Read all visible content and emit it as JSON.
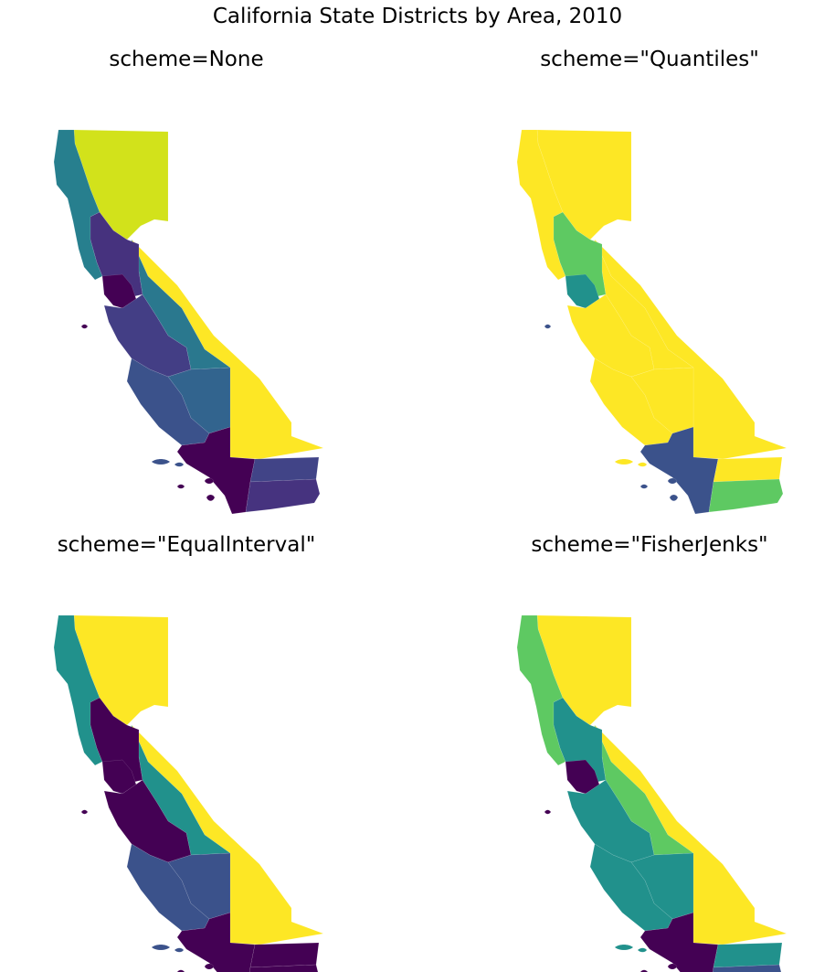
{
  "figure": {
    "title": "California State Districts by Area, 2010"
  },
  "panels": [
    {
      "title": "scheme=None",
      "colors": {
        "north": "#d2e21b",
        "coast": "#277f8e",
        "sierra": "#2a788e",
        "east": "#fde725",
        "bay": "#46327e",
        "bay_dark": "#440154",
        "central": "#433e85",
        "valley": "#32648e",
        "south_central": "#3b528b",
        "la": "#440154",
        "se": "#414487",
        "se2": "#46337f",
        "islands": "#3b528b"
      }
    },
    {
      "title": "scheme=\"Quantiles\"",
      "colors": {
        "north": "#fde725",
        "coast": "#fde725",
        "sierra": "#fde725",
        "east": "#fde725",
        "bay": "#5ec962",
        "bay_dark": "#21918c",
        "central": "#fde725",
        "valley": "#fde725",
        "south_central": "#fde725",
        "la": "#3b528b",
        "se": "#fde725",
        "se2": "#5ec962",
        "islands": "#fde725"
      }
    },
    {
      "title": "scheme=\"EqualInterval\"",
      "colors": {
        "north": "#fde725",
        "coast": "#21918c",
        "sierra": "#21918c",
        "east": "#fde725",
        "bay": "#440154",
        "bay_dark": "#440154",
        "central": "#440154",
        "valley": "#3b528b",
        "south_central": "#3b528b",
        "la": "#440154",
        "se": "#440154",
        "se2": "#440154",
        "islands": "#3b528b"
      }
    },
    {
      "title": "scheme=\"FisherJenks\"",
      "colors": {
        "north": "#fde725",
        "coast": "#5ec962",
        "sierra": "#5ec962",
        "east": "#fde725",
        "bay": "#21918c",
        "bay_dark": "#440154",
        "central": "#21918c",
        "valley": "#21918c",
        "south_central": "#21918c",
        "la": "#440154",
        "se": "#21918c",
        "se2": "#3b528b",
        "islands": "#21918c"
      }
    }
  ]
}
